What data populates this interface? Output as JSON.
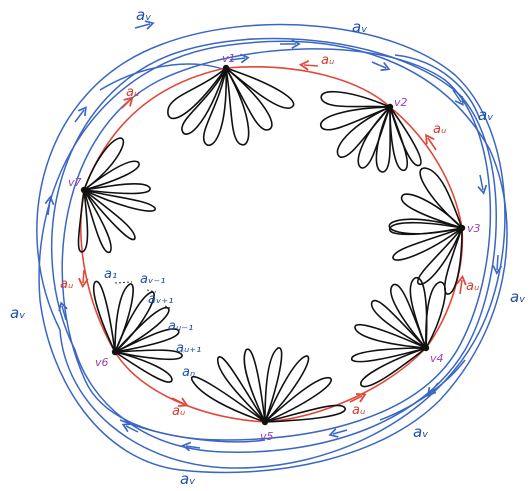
{
  "colors": {
    "blue_edge": "#3a66c4",
    "red_edge": "#e2483a",
    "loop": "#111111",
    "vertex_label": "#9b3fb5",
    "blue_text": "#1f4fa8",
    "red_text": "#d23a2c"
  },
  "vertices": [
    "v1",
    "v2",
    "v3",
    "v4",
    "v5",
    "v6",
    "v7"
  ],
  "labels": {
    "av": "aᵥ",
    "au": "aᵤ"
  },
  "fan_labels": [
    "a₁",
    "aᵥ₋₁",
    "aᵥ₊₁",
    "aᵤ₋₁",
    "aᵤ₊₁",
    "aₙ"
  ]
}
